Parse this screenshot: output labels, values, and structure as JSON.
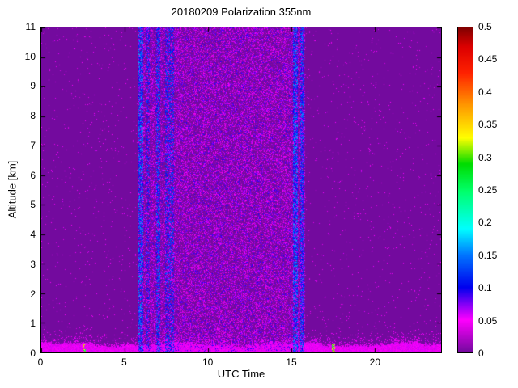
{
  "chart_data": {
    "type": "heatmap",
    "title": "20180209 Polarization 355nm",
    "xlabel": "UTC Time",
    "ylabel": "Altitude [km]",
    "x_range": [
      0,
      24
    ],
    "y_range": [
      0,
      11
    ],
    "x_ticks": [
      0,
      5,
      10,
      15,
      20
    ],
    "x_tick_labels": [
      "0",
      "5",
      "10",
      "15",
      "20"
    ],
    "y_ticks": [
      0,
      1,
      2,
      3,
      4,
      5,
      6,
      7,
      8,
      9,
      10,
      11
    ],
    "y_tick_labels": [
      "0",
      "1",
      "2",
      "3",
      "4",
      "5",
      "6",
      "7",
      "8",
      "9",
      "10",
      "11"
    ],
    "grid": false,
    "colorbar": {
      "range": [
        0,
        0.5
      ],
      "ticks": [
        0,
        0.05,
        0.1,
        0.15,
        0.2,
        0.25,
        0.3,
        0.35,
        0.4,
        0.45,
        0.5
      ],
      "tick_labels": [
        "0",
        "0.05",
        "0.1",
        "0.15",
        "0.2",
        "0.25",
        "0.3",
        "0.35",
        "0.4",
        "0.45",
        "0.5"
      ],
      "position": "right"
    },
    "colormap": [
      {
        "v": 0.0,
        "c": "#730a9e"
      },
      {
        "v": 0.05,
        "c": "#ff00ff"
      },
      {
        "v": 0.1,
        "c": "#0000ee"
      },
      {
        "v": 0.15,
        "c": "#0077ff"
      },
      {
        "v": 0.19,
        "c": "#00ffff"
      },
      {
        "v": 0.25,
        "c": "#00ff66"
      },
      {
        "v": 0.29,
        "c": "#00dd00"
      },
      {
        "v": 0.33,
        "c": "#ffff00"
      },
      {
        "v": 0.38,
        "c": "#ff9900"
      },
      {
        "v": 0.43,
        "c": "#ff2200"
      },
      {
        "v": 0.47,
        "c": "#dd0000"
      },
      {
        "v": 0.5,
        "c": "#800000"
      }
    ],
    "features": {
      "background_value": 0,
      "background_speckle": {
        "probability": 0.012,
        "value_min": 0.03,
        "value_max": 0.06
      },
      "noisy_region": {
        "t_start": 6.0,
        "t_end": 15.85,
        "probability": 0.5,
        "value_min": 0.0,
        "value_max": 0.095
      },
      "stripes": [
        {
          "t0": 5.82,
          "t1": 6.12,
          "probability": 0.85,
          "value_min": 0.05,
          "value_max": 0.17
        },
        {
          "t0": 6.28,
          "t1": 6.5,
          "probability": 0.6,
          "value_min": 0.04,
          "value_max": 0.14
        },
        {
          "t0": 6.88,
          "t1": 7.12,
          "probability": 0.75,
          "value_min": 0.05,
          "value_max": 0.16
        },
        {
          "t0": 7.45,
          "t1": 7.95,
          "probability": 0.65,
          "value_min": 0.04,
          "value_max": 0.15
        },
        {
          "t0": 15.12,
          "t1": 15.4,
          "probability": 0.85,
          "value_min": 0.05,
          "value_max": 0.17
        },
        {
          "t0": 15.55,
          "t1": 15.78,
          "probability": 0.8,
          "value_min": 0.05,
          "value_max": 0.16
        }
      ],
      "surface_layer": {
        "base_height": 0.27,
        "amp1": 0.05,
        "amp2": 0.03,
        "amp3": 0.015,
        "roughness": 0.1,
        "value_min": 0.035,
        "value_max": 0.06,
        "halo_height": 0.45,
        "halo_probability": 0.35
      },
      "hot_spots": [
        {
          "t": 2.6,
          "half_width": 0.09,
          "top": 0.3,
          "probability": 0.7,
          "value_min": 0.22,
          "value_max": 0.38
        },
        {
          "t": 17.55,
          "half_width": 0.09,
          "top": 0.3,
          "probability": 0.7,
          "value_min": 0.22,
          "value_max": 0.38
        }
      ]
    }
  }
}
